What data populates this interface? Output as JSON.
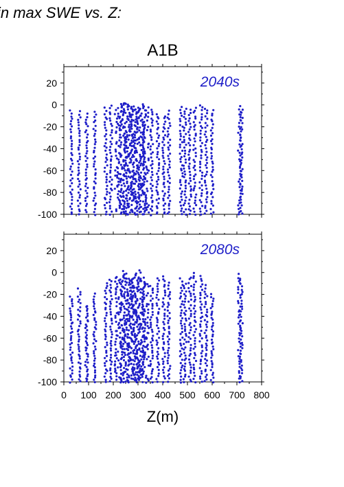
{
  "page": {
    "heading": "in max SWE vs. Z:"
  },
  "colors": {
    "points": "#1e1ec8",
    "period_label": "#1e1ec8",
    "frame": "#000000"
  },
  "chart_data": {
    "type": "scatter",
    "title": "A1B",
    "xlabel": "Z(m)",
    "ylabel": "",
    "xlim": [
      0,
      800
    ],
    "ylim": [
      -100,
      35
    ],
    "x_ticks": [
      0,
      100,
      200,
      300,
      400,
      500,
      600,
      700,
      800
    ],
    "y_ticks": [
      -100,
      -80,
      -60,
      -40,
      -20,
      0,
      20
    ],
    "grid": false,
    "panels": [
      {
        "name": "2040s",
        "label": "2040s",
        "columns": [
          {
            "x": 30,
            "y_min": -100,
            "y_max": -5
          },
          {
            "x": 62,
            "y_min": -100,
            "y_max": -6
          },
          {
            "x": 92,
            "y_min": -98,
            "y_max": -8
          },
          {
            "x": 125,
            "y_min": -100,
            "y_max": -6
          },
          {
            "x": 170,
            "y_min": -100,
            "y_max": -3
          },
          {
            "x": 190,
            "y_min": -100,
            "y_max": -1
          },
          {
            "x": 220,
            "y_min": -100,
            "y_max": 0
          },
          {
            "x": 240,
            "y_min": -100,
            "y_max": 2
          },
          {
            "x": 255,
            "y_min": -100,
            "y_max": 1
          },
          {
            "x": 270,
            "y_min": -100,
            "y_max": 0
          },
          {
            "x": 285,
            "y_min": -100,
            "y_max": -1
          },
          {
            "x": 300,
            "y_min": -100,
            "y_max": -2
          },
          {
            "x": 315,
            "y_min": -100,
            "y_max": -1
          },
          {
            "x": 330,
            "y_min": -100,
            "y_max": 0
          },
          {
            "x": 355,
            "y_min": -100,
            "y_max": -4
          },
          {
            "x": 380,
            "y_min": -100,
            "y_max": -8
          },
          {
            "x": 405,
            "y_min": -100,
            "y_max": -10
          },
          {
            "x": 425,
            "y_min": -100,
            "y_max": -6
          },
          {
            "x": 475,
            "y_min": -100,
            "y_max": -2
          },
          {
            "x": 490,
            "y_min": -100,
            "y_max": -3
          },
          {
            "x": 510,
            "y_min": -100,
            "y_max": -4
          },
          {
            "x": 530,
            "y_min": -100,
            "y_max": -2
          },
          {
            "x": 555,
            "y_min": -100,
            "y_max": 0
          },
          {
            "x": 575,
            "y_min": -100,
            "y_max": -3
          },
          {
            "x": 600,
            "y_min": -100,
            "y_max": -5
          },
          {
            "x": 710,
            "y_min": -100,
            "y_max": -1
          },
          {
            "x": 718,
            "y_min": -100,
            "y_max": -4
          }
        ]
      },
      {
        "name": "2080s",
        "label": "2080s",
        "columns": [
          {
            "x": 30,
            "y_min": -100,
            "y_max": -22
          },
          {
            "x": 62,
            "y_min": -100,
            "y_max": -15
          },
          {
            "x": 92,
            "y_min": -100,
            "y_max": -30
          },
          {
            "x": 125,
            "y_min": -100,
            "y_max": -20
          },
          {
            "x": 170,
            "y_min": -100,
            "y_max": -10
          },
          {
            "x": 190,
            "y_min": -100,
            "y_max": -6
          },
          {
            "x": 220,
            "y_min": -100,
            "y_max": -4
          },
          {
            "x": 240,
            "y_min": -100,
            "y_max": 1
          },
          {
            "x": 255,
            "y_min": -100,
            "y_max": -2
          },
          {
            "x": 270,
            "y_min": -100,
            "y_max": -5
          },
          {
            "x": 285,
            "y_min": -100,
            "y_max": -3
          },
          {
            "x": 300,
            "y_min": -100,
            "y_max": 2
          },
          {
            "x": 315,
            "y_min": -100,
            "y_max": -4
          },
          {
            "x": 330,
            "y_min": -100,
            "y_max": -8
          },
          {
            "x": 355,
            "y_min": -100,
            "y_max": -12
          },
          {
            "x": 380,
            "y_min": -100,
            "y_max": -5
          },
          {
            "x": 405,
            "y_min": -100,
            "y_max": -3
          },
          {
            "x": 425,
            "y_min": -100,
            "y_max": -10
          },
          {
            "x": 475,
            "y_min": -100,
            "y_max": -6
          },
          {
            "x": 490,
            "y_min": -100,
            "y_max": -10
          },
          {
            "x": 510,
            "y_min": -100,
            "y_max": -4
          },
          {
            "x": 530,
            "y_min": -100,
            "y_max": 0
          },
          {
            "x": 555,
            "y_min": -100,
            "y_max": -3
          },
          {
            "x": 575,
            "y_min": -100,
            "y_max": -12
          },
          {
            "x": 600,
            "y_min": -100,
            "y_max": -20
          },
          {
            "x": 710,
            "y_min": -100,
            "y_max": -2
          },
          {
            "x": 718,
            "y_min": -100,
            "y_max": -5
          }
        ]
      }
    ]
  }
}
